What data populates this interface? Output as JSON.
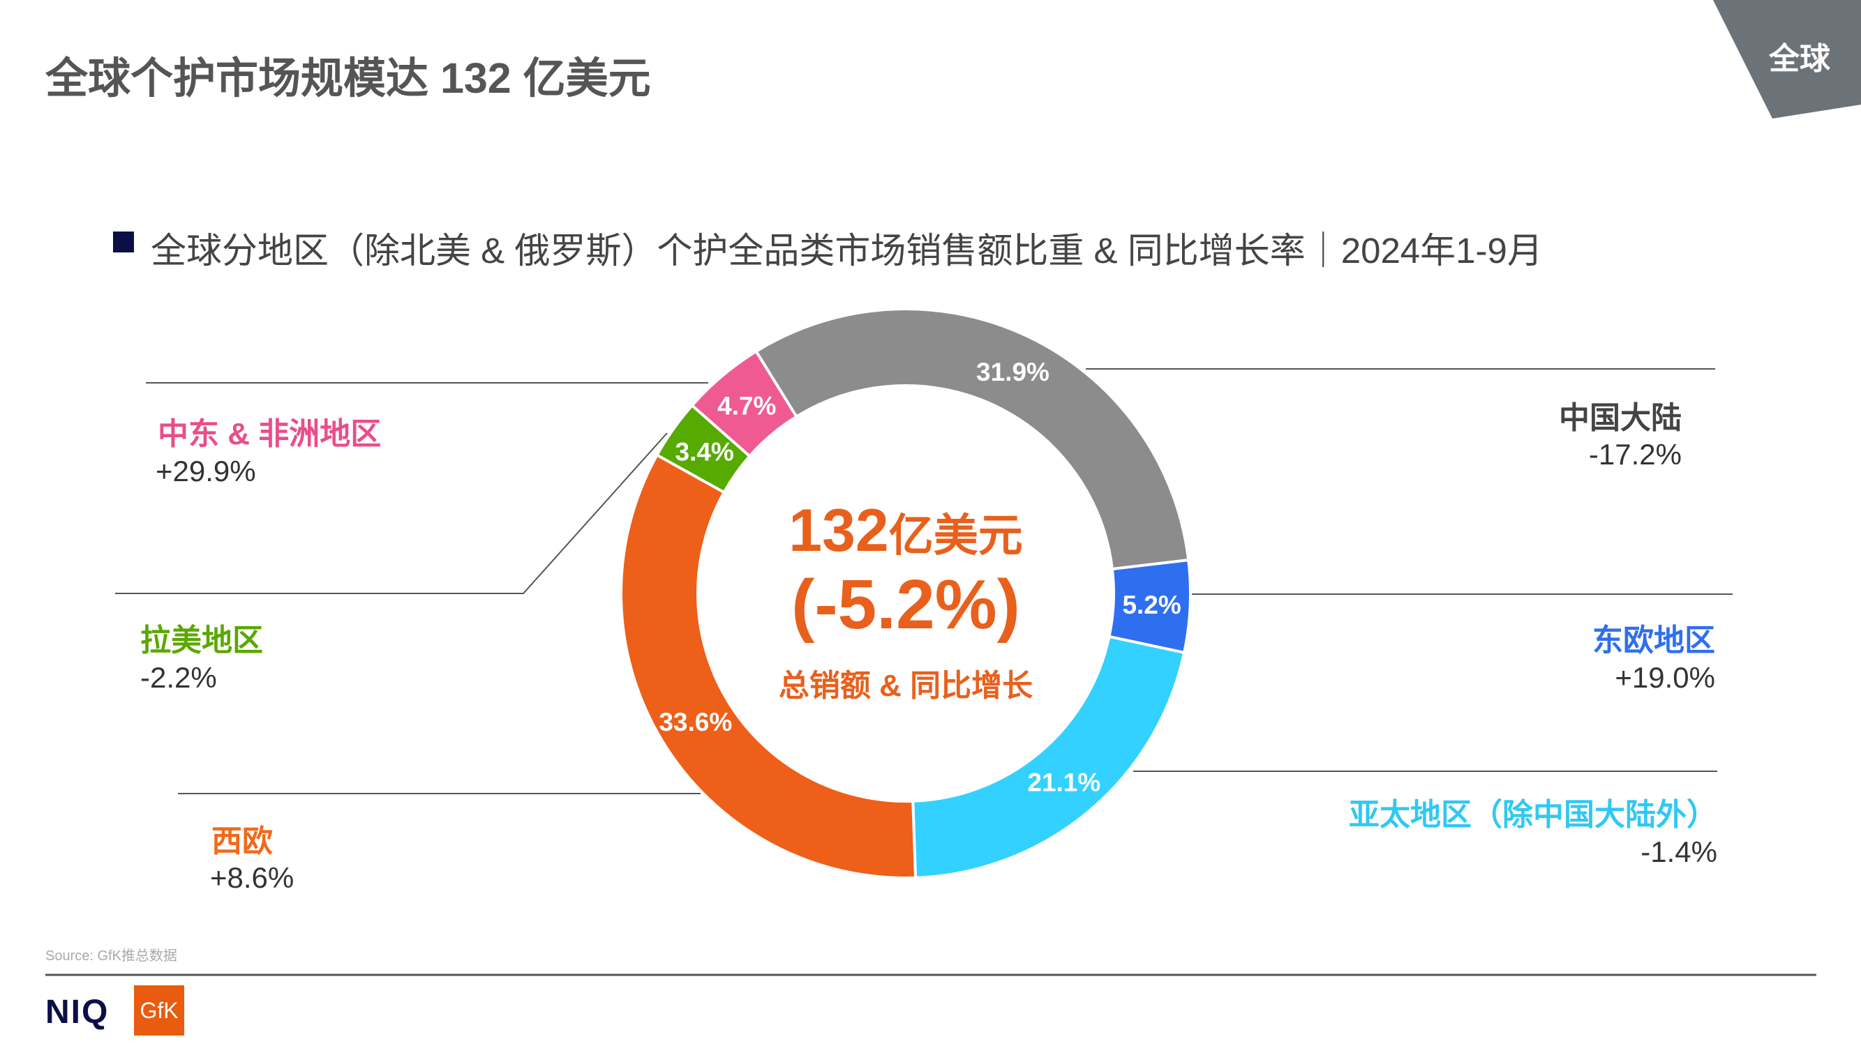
{
  "header": {
    "title": "全球个护市场规模达 132 亿美元",
    "tab": "全球",
    "tab_color": "#6b7278"
  },
  "subtitle": "全球分地区（除北美 & 俄罗斯）个护全品类市场销售额比重 & 同比增长率｜2024年1-9月",
  "chart_data": {
    "type": "pie",
    "donut": true,
    "title": "全球分地区（除北美 & 俄罗斯）个护全品类市场销售额比重 & 同比增长率｜2024年1-9月",
    "center": {
      "value": "132",
      "unit": "亿美元",
      "growth": "(-5.2%)",
      "caption": "总销额 & 同比增长"
    },
    "slices": [
      {
        "region": "中国大陆",
        "share": 31.9,
        "label": "31.9%",
        "growth": "-17.2%",
        "color": "#8c8c8c",
        "label_color": "#444444"
      },
      {
        "region": "东欧地区",
        "share": 5.2,
        "label": "5.2%",
        "growth": "+19.0%",
        "color": "#2e6ff0",
        "label_color": "#2e6ff0"
      },
      {
        "region": "亚太地区（除中国大陆外）",
        "share": 21.1,
        "label": "21.1%",
        "growth": "-1.4%",
        "color": "#33d1ff",
        "label_color": "#2fc8f5"
      },
      {
        "region": "西欧",
        "share": 33.6,
        "label": "33.6%",
        "growth": "+8.6%",
        "color": "#ee5f19",
        "label_color": "#f06a1a"
      },
      {
        "region": "拉美地区",
        "share": 3.4,
        "label": "3.4%",
        "growth": "-2.2%",
        "color": "#56aa00",
        "label_color": "#5aa700"
      },
      {
        "region": "中东 & 非洲地区",
        "share": 4.7,
        "label": "4.7%",
        "growth": "+29.9%",
        "color": "#ef5a93",
        "label_color": "#e94e8a"
      }
    ]
  },
  "footer": {
    "source": "Source: GfK推总数据",
    "logo_niq": "NIQ",
    "logo_gfk": "GfK"
  }
}
